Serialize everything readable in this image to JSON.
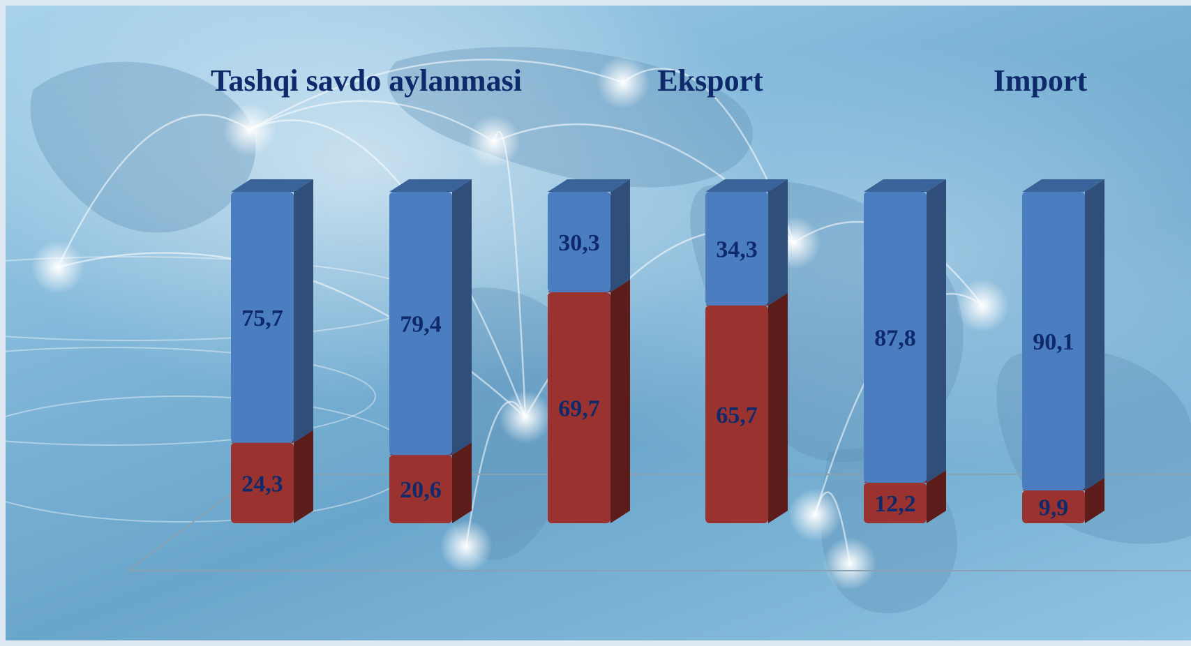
{
  "chart_data": {
    "type": "bar",
    "stacked": true,
    "three_d": true,
    "group_titles": [
      "Tashqi savdo aylanmasi",
      "Eksport",
      "Import"
    ],
    "bars": [
      {
        "bottom": 24.3,
        "top": 75.7,
        "bottom_label": "24,3",
        "top_label": "75,7"
      },
      {
        "bottom": 20.6,
        "top": 79.4,
        "bottom_label": "20,6",
        "top_label": "79,4"
      },
      {
        "bottom": 69.7,
        "top": 30.3,
        "bottom_label": "69,7",
        "top_label": "30,3"
      },
      {
        "bottom": 65.7,
        "top": 34.3,
        "bottom_label": "65,7",
        "top_label": "34,3"
      },
      {
        "bottom": 12.2,
        "top": 87.8,
        "bottom_label": "12,2",
        "top_label": "87,8"
      },
      {
        "bottom": 9.9,
        "top": 90.1,
        "bottom_label": "9,9",
        "top_label": "90,1"
      }
    ],
    "ylim": [
      0,
      100
    ],
    "grid": false,
    "legend": "none",
    "colors": {
      "top_series": "#4a7ec0",
      "top_series_side": "#2f4f7a",
      "top_series_cap": "#3a6499",
      "bottom_series": "#9a3330",
      "bottom_series_side": "#5c1c1a",
      "bottom_series_cap": "#7a2624",
      "label": "#0f2a6b"
    }
  }
}
